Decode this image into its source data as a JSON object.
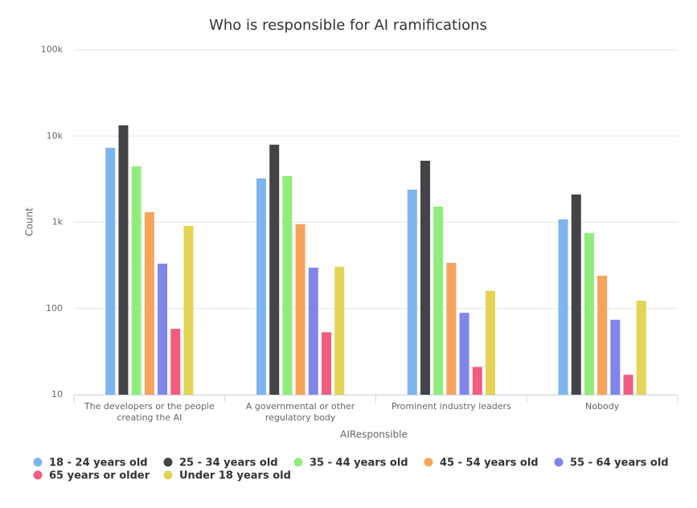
{
  "chart_data": {
    "type": "bar",
    "title": "Who is responsible for AI ramifications",
    "x_label": "AIResponsible",
    "y_label": "Count",
    "log_scale": true,
    "grid": true,
    "categories": [
      "The developers or the people creating the AI",
      "A governmental or other regulatory body",
      "Prominent industry leaders",
      "Nobody"
    ],
    "ylim": [
      10,
      100000
    ],
    "yticks": [
      10,
      100,
      {
        "value": 1000,
        "label": "1k"
      },
      {
        "value": 10000,
        "label": "10k"
      },
      {
        "value": 100000,
        "label": "100k"
      }
    ],
    "series": [
      {
        "name": "18 - 24 years old",
        "color": "#7cb5ec",
        "values": [
          7300,
          3220,
          2390,
          1080
        ]
      },
      {
        "name": "25 - 34 years old",
        "color": "#434348",
        "values": [
          13300,
          7940,
          5170,
          2100
        ]
      },
      {
        "name": "35 - 44 years old",
        "color": "#90ed7d",
        "values": [
          4450,
          3440,
          1520,
          748
        ]
      },
      {
        "name": "45 - 54 years old",
        "color": "#f7a35c",
        "values": [
          1310,
          948,
          338,
          240
        ]
      },
      {
        "name": "55 - 64 years old",
        "color": "#8085e9",
        "values": [
          331,
          297,
          89,
          74
        ]
      },
      {
        "name": "65 years or older",
        "color": "#f15c80",
        "values": [
          58,
          53,
          21,
          17
        ]
      },
      {
        "name": "Under 18 years old",
        "color": "#e4d354",
        "values": [
          908,
          304,
          160,
          123
        ]
      }
    ]
  }
}
